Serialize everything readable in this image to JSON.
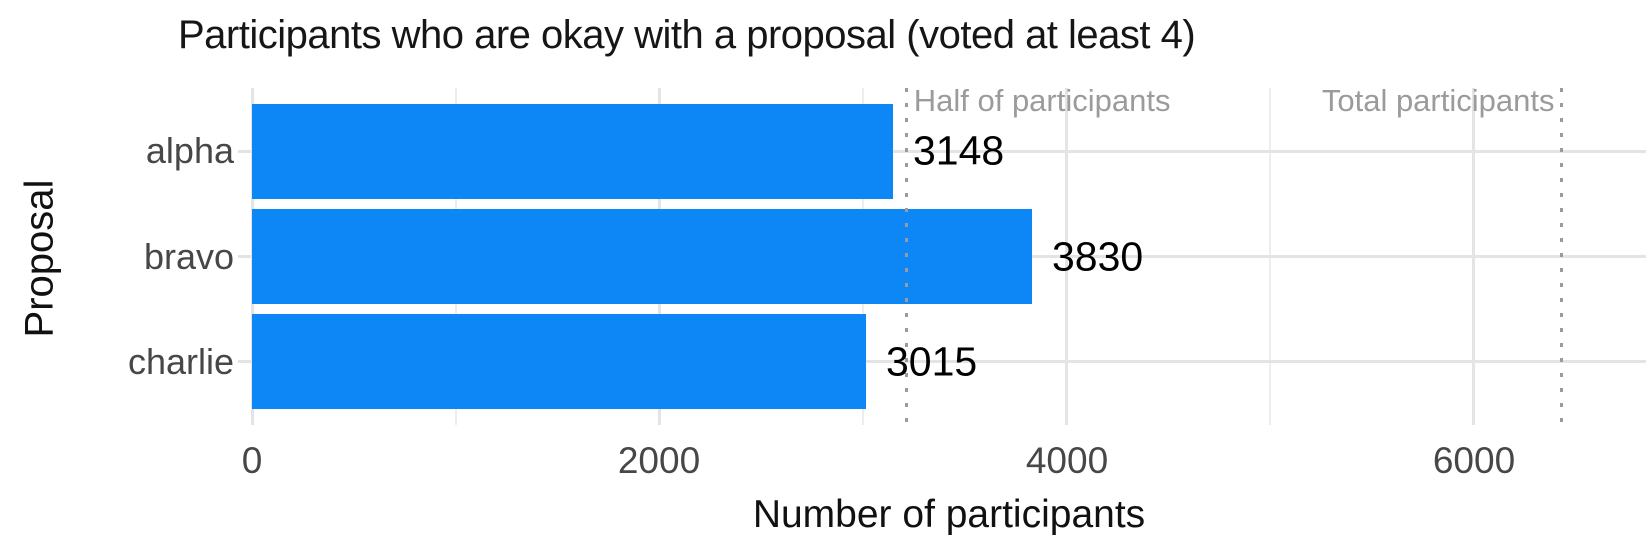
{
  "colors": {
    "bar": "#0d87f5",
    "grid_major": "#e4e4e4",
    "grid_minor": "#ededed",
    "reference_line": "#9b9b9b",
    "annotation_text": "#9b9b9b",
    "axis_tick_text": "#474747",
    "title_text": "#161616",
    "value_text": "#000000"
  },
  "chart_data": {
    "type": "bar",
    "orientation": "horizontal",
    "title": "Participants who are okay with a proposal (voted at least 4)",
    "xlabel": "Number of participants",
    "ylabel": "Proposal",
    "categories": [
      "alpha",
      "bravo",
      "charlie"
    ],
    "values": [
      3148,
      3830,
      3015
    ],
    "bar_value_labels": [
      "3148",
      "3830",
      "3015"
    ],
    "xlim": [
      0,
      6845
    ],
    "x_major_ticks": [
      0,
      2000,
      4000,
      6000
    ],
    "x_tick_labels": [
      "0",
      "2000",
      "4000",
      "6000"
    ],
    "x_minor_gridlines": [
      1000,
      3000,
      5000
    ],
    "grid": true,
    "legend": false,
    "reference_lines": [
      {
        "label": "Half of participants",
        "value": 3215,
        "label_side": "right"
      },
      {
        "label": "Total participants",
        "value": 6430,
        "label_side": "left"
      }
    ]
  }
}
